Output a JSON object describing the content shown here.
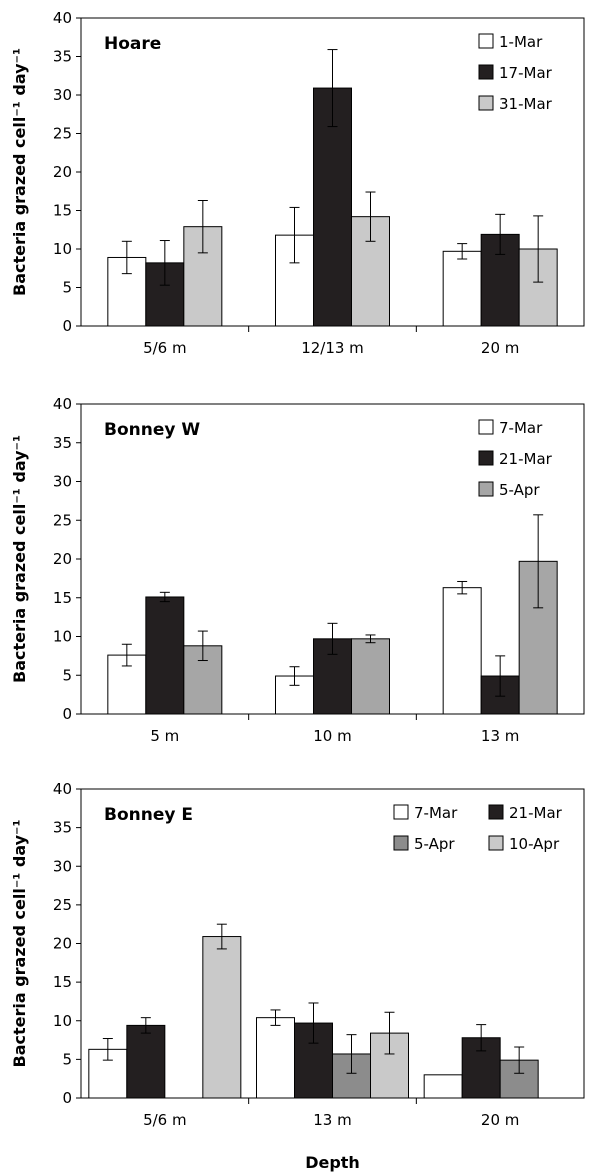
{
  "chart_data": [
    {
      "type": "bar",
      "title": "Hoare",
      "ylabel": "Bacteria grazed cell⁻¹ day⁻¹",
      "xlabel": "",
      "ylim": [
        0,
        40
      ],
      "yticks": [
        0,
        5,
        10,
        15,
        20,
        25,
        30,
        35,
        40
      ],
      "categories": [
        "5/6 m",
        "12/13 m",
        "20 m"
      ],
      "legend_position": "top-right",
      "legend_columns": 1,
      "series": [
        {
          "name": "1-Mar",
          "color": "#ffffff",
          "values": [
            8.9,
            11.8,
            9.7
          ],
          "errors": [
            2.1,
            3.6,
            1.0
          ]
        },
        {
          "name": "17-Mar",
          "color": "#231f20",
          "values": [
            8.2,
            30.9,
            11.9
          ],
          "errors": [
            2.9,
            5.0,
            2.6
          ]
        },
        {
          "name": "31-Mar",
          "color": "#c9c9c9",
          "values": [
            12.9,
            14.2,
            10.0
          ],
          "errors": [
            3.4,
            3.2,
            4.3
          ]
        }
      ]
    },
    {
      "type": "bar",
      "title": "Bonney W",
      "ylabel": "Bacteria grazed cell⁻¹ day⁻¹",
      "xlabel": "",
      "ylim": [
        0,
        40
      ],
      "yticks": [
        0,
        5,
        10,
        15,
        20,
        25,
        30,
        35,
        40
      ],
      "categories": [
        "5 m",
        "10 m",
        "13 m"
      ],
      "legend_position": "top-right",
      "legend_columns": 1,
      "series": [
        {
          "name": "7-Mar",
          "color": "#ffffff",
          "values": [
            7.6,
            4.9,
            16.3
          ],
          "errors": [
            1.4,
            1.2,
            0.8
          ]
        },
        {
          "name": "21-Mar",
          "color": "#231f20",
          "values": [
            15.1,
            9.7,
            4.9
          ],
          "errors": [
            0.6,
            2.0,
            2.6
          ]
        },
        {
          "name": "5-Apr",
          "color": "#a6a6a6",
          "values": [
            8.8,
            9.7,
            19.7
          ],
          "errors": [
            1.9,
            0.5,
            6.0
          ]
        }
      ]
    },
    {
      "type": "bar",
      "title": "Bonney E",
      "ylabel": "Bacteria grazed cell⁻¹ day⁻¹",
      "xlabel": "Depth",
      "ylim": [
        0,
        40
      ],
      "yticks": [
        0,
        5,
        10,
        15,
        20,
        25,
        30,
        35,
        40
      ],
      "categories": [
        "5/6 m",
        "13 m",
        "20 m"
      ],
      "legend_position": "top-right",
      "legend_columns": 2,
      "series": [
        {
          "name": "7-Mar",
          "color": "#ffffff",
          "values": [
            6.3,
            10.4,
            3.0
          ],
          "errors": [
            1.4,
            1.0,
            0
          ]
        },
        {
          "name": "21-Mar",
          "color": "#231f20",
          "values": [
            9.4,
            9.7,
            7.8
          ],
          "errors": [
            1.0,
            2.6,
            1.7
          ]
        },
        {
          "name": "5-Apr",
          "color": "#8c8c8c",
          "values": [
            null,
            5.7,
            4.9
          ],
          "errors": [
            0,
            2.5,
            1.7
          ]
        },
        {
          "name": "10-Apr",
          "color": "#c9c9c9",
          "values": [
            20.9,
            8.4,
            null
          ],
          "errors": [
            1.6,
            2.7,
            0
          ]
        }
      ]
    }
  ]
}
